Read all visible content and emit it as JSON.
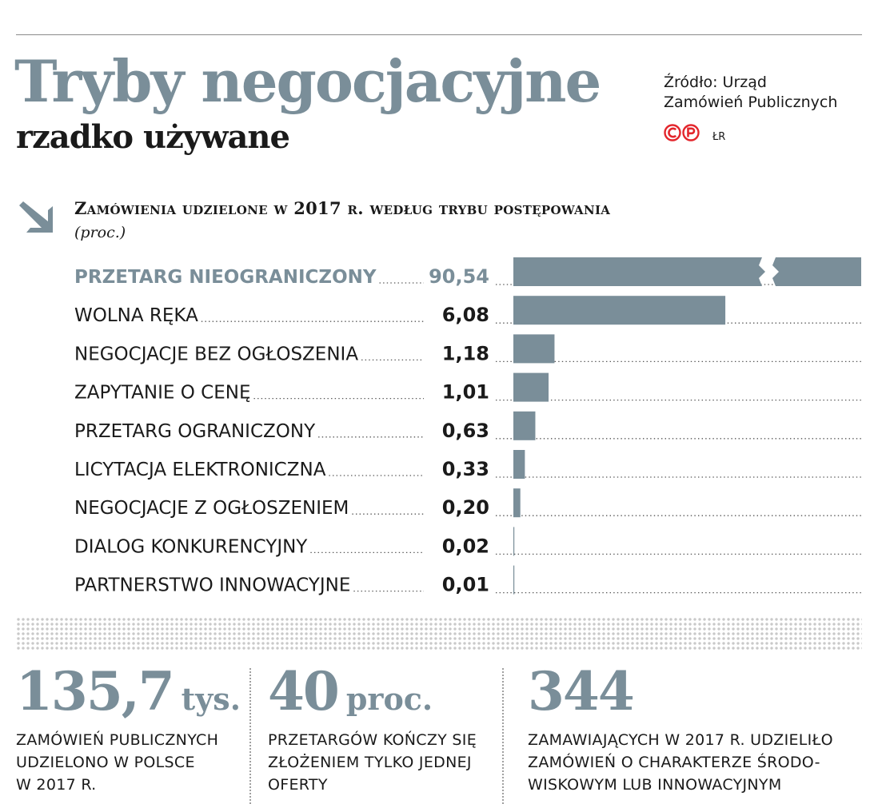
{
  "header": {
    "title": "Tryby negocjacyjne",
    "subtitle": "rzadko używane",
    "source_line1": "Źródło: Urząd",
    "source_line2": "Zamówień Publicznych",
    "author": "ŁR",
    "logo": "cp-logo",
    "arrow_icon": "arrow-down-right-icon"
  },
  "chart_data": {
    "type": "bar",
    "orientation": "horizontal",
    "title": "Zamówienia udzielone w 2017 r. według trybu postępowania",
    "unit": "(proc.)",
    "categories": [
      "PRZETARG NIEOGRANICZONY",
      "WOLNA RĘKA",
      "NEGOCJACJE BEZ OGŁOSZENIA",
      "ZAPYTANIE O CENĘ",
      "PRZETARG OGRANICZONY",
      "LICYTACJA ELEKTRONICZNA",
      "NEGOCJACJE Z OGŁOSZENIEM",
      "DIALOG KONKURENCYJNY",
      "PARTNERSTWO INNOWACYJNE"
    ],
    "values": [
      90.54,
      6.08,
      1.18,
      1.01,
      0.63,
      0.33,
      0.2,
      0.02,
      0.01
    ],
    "value_labels": [
      "90,54",
      "6,08",
      "1,18",
      "1,01",
      "0,63",
      "0,33",
      "0,20",
      "0,02",
      "0,01"
    ],
    "highlight_first": true,
    "first_bar_axis_break": true,
    "bar_color": "#7a8e99",
    "highlight_label_color": "#7a8e99"
  },
  "stats": [
    {
      "value": "135,7",
      "unit": "tys.",
      "line1": "ZAMÓWIEŃ PUBLICZNYCH",
      "line2": "UDZIELONO W POLSCE",
      "line3": "W 2017 R."
    },
    {
      "value": "40",
      "unit": "proc.",
      "line1": "PRZETARGÓW KOŃCZY SIĘ",
      "line2": "ZŁOŻENIEM TYLKO JEDNEJ",
      "line3": "OFERTY"
    },
    {
      "value": "344",
      "unit": "",
      "line1": "ZAMAWIAJĄCYCH W 2017 R. UDZIELIŁO",
      "line2": "ZAMÓWIEŃ O CHARAKTERZE ŚRODO-",
      "line3": "WISKOWYM LUB INNOWACYJNYM"
    }
  ],
  "colors": {
    "accent": "#7a8e99",
    "text": "#1a1a1a",
    "logo_red": "#e3262c"
  }
}
